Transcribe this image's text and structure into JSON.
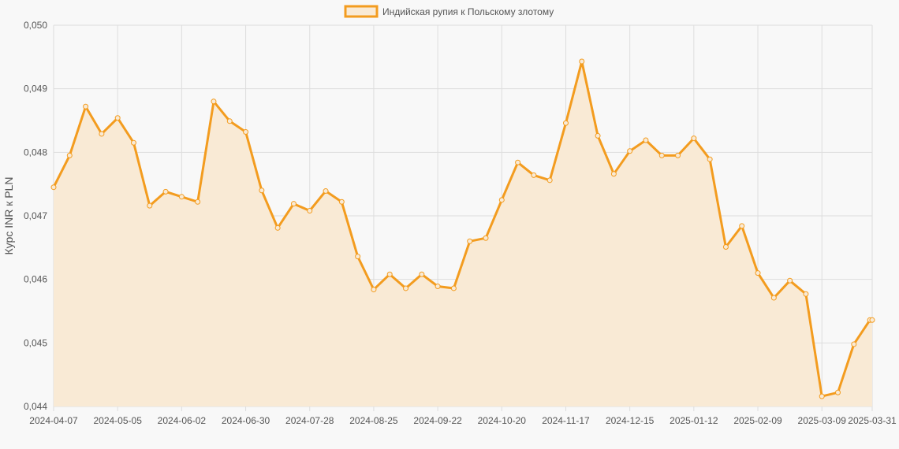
{
  "chart_data": {
    "type": "line",
    "legend": {
      "label": "Индийская рупия к Польскому злотому",
      "position": "top"
    },
    "ylabel": "Курс INR к PLN",
    "ylim": [
      0.044,
      0.05
    ],
    "y_ticks": [
      "0,050",
      "0,049",
      "0,048",
      "0,047",
      "0,046",
      "0,045",
      "0,044"
    ],
    "x_ticks": [
      "2024-04-07",
      "2024-05-05",
      "2024-06-02",
      "2024-06-30",
      "2024-07-28",
      "2024-08-25",
      "2024-09-22",
      "2024-10-20",
      "2024-11-17",
      "2024-12-15",
      "2025-01-12",
      "2025-02-09",
      "2025-03-09",
      "2025-03-31"
    ],
    "grid": true,
    "colors": {
      "line": "#f39c1f",
      "fill": "#f9ead5",
      "grid": "#dddddd",
      "background": "#f8f8f8"
    },
    "series": [
      {
        "name": "Индийская рупия к Польскому злотому",
        "x": [
          "2024-04-07",
          "2024-04-14",
          "2024-04-21",
          "2024-04-28",
          "2024-05-05",
          "2024-05-12",
          "2024-05-19",
          "2024-05-26",
          "2024-06-02",
          "2024-06-09",
          "2024-06-16",
          "2024-06-23",
          "2024-06-30",
          "2024-07-07",
          "2024-07-14",
          "2024-07-21",
          "2024-07-28",
          "2024-08-04",
          "2024-08-11",
          "2024-08-18",
          "2024-08-25",
          "2024-09-01",
          "2024-09-08",
          "2024-09-15",
          "2024-09-22",
          "2024-09-29",
          "2024-10-06",
          "2024-10-13",
          "2024-10-20",
          "2024-10-27",
          "2024-11-03",
          "2024-11-10",
          "2024-11-17",
          "2024-11-24",
          "2024-12-01",
          "2024-12-08",
          "2024-12-15",
          "2024-12-22",
          "2024-12-29",
          "2025-01-05",
          "2025-01-12",
          "2025-01-19",
          "2025-01-26",
          "2025-02-02",
          "2025-02-09",
          "2025-02-16",
          "2025-02-23",
          "2025-03-02",
          "2025-03-09",
          "2025-03-16",
          "2025-03-23",
          "2025-03-30",
          "2025-03-31"
        ],
        "values": [
          0.04745,
          0.04795,
          0.04872,
          0.04829,
          0.04854,
          0.04815,
          0.04716,
          0.04738,
          0.0473,
          0.04722,
          0.0488,
          0.04849,
          0.04832,
          0.0474,
          0.04681,
          0.04719,
          0.04708,
          0.04739,
          0.04722,
          0.04636,
          0.04584,
          0.04608,
          0.04586,
          0.04608,
          0.04589,
          0.04586,
          0.0466,
          0.04665,
          0.04725,
          0.04784,
          0.04764,
          0.04756,
          0.04846,
          0.04943,
          0.04826,
          0.04766,
          0.04802,
          0.04819,
          0.04795,
          0.04795,
          0.04822,
          0.04789,
          0.04651,
          0.04684,
          0.0461,
          0.04571,
          0.04598,
          0.04577,
          0.04416,
          0.04422,
          0.04498,
          0.04536,
          0.04536
        ]
      }
    ]
  }
}
